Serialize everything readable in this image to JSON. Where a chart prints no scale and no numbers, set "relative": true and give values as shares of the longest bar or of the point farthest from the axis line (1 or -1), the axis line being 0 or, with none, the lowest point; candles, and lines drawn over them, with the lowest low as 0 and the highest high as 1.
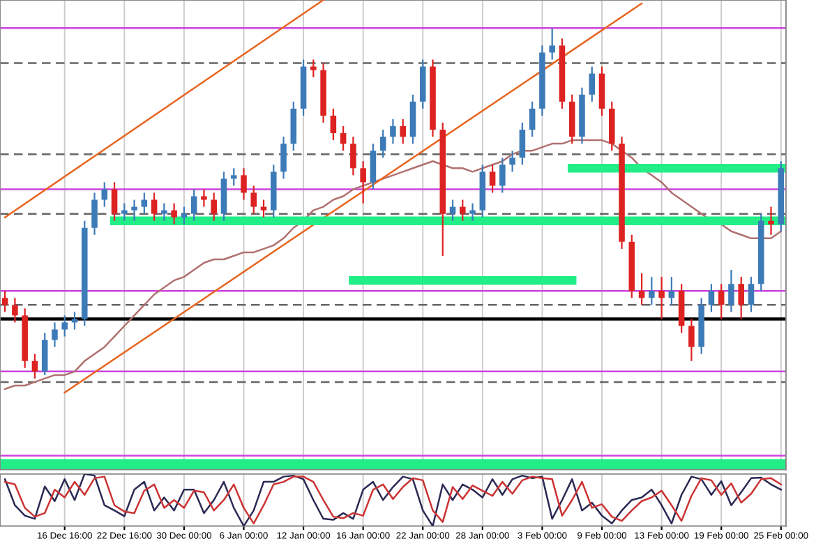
{
  "chart_data": [
    {
      "type": "candlestick",
      "relative": true,
      "tick_labels": false,
      "grid": "x",
      "categories": [
        null,
        null,
        null,
        null,
        null,
        null,
        null,
        null,
        null,
        null,
        null,
        null,
        null,
        null,
        null,
        null,
        null,
        null,
        null,
        null,
        null,
        null,
        null,
        null,
        null,
        null,
        null,
        null,
        null,
        null,
        null,
        null,
        null,
        null,
        null,
        null,
        null,
        null,
        null,
        null,
        null,
        null,
        null,
        null,
        null,
        null,
        null,
        null,
        null,
        null,
        null,
        null,
        null,
        null,
        null,
        null,
        null,
        null,
        null,
        null,
        null,
        null,
        null,
        null,
        null,
        null,
        null,
        null,
        null,
        null,
        null,
        null,
        null,
        null,
        null,
        null,
        null,
        null,
        null
      ],
      "ohlc": [
        [
          0.23,
          0.25,
          0.19,
          0.21
        ],
        [
          0.21,
          0.23,
          0.16,
          0.18
        ],
        [
          0.18,
          0.2,
          0.03,
          0.05
        ],
        [
          0.05,
          0.07,
          0,
          0.02
        ],
        [
          0.02,
          0.13,
          0.01,
          0.11
        ],
        [
          0.11,
          0.16,
          0.09,
          0.14
        ],
        [
          0.14,
          0.18,
          0.12,
          0.16
        ],
        [
          0.16,
          0.19,
          0.14,
          0.17
        ],
        [
          0.17,
          0.45,
          0.15,
          0.43
        ],
        [
          0.43,
          0.53,
          0.41,
          0.51
        ],
        [
          0.51,
          0.56,
          0.49,
          0.54
        ],
        [
          0.54,
          0.56,
          0.45,
          0.47
        ],
        [
          0.47,
          0.5,
          0.45,
          0.48
        ],
        [
          0.48,
          0.51,
          0.45,
          0.49
        ],
        [
          0.49,
          0.53,
          0.47,
          0.51
        ],
        [
          0.51,
          0.53,
          0.45,
          0.47
        ],
        [
          0.47,
          0.5,
          0.45,
          0.48
        ],
        [
          0.48,
          0.5,
          0.44,
          0.46
        ],
        [
          0.46,
          0.49,
          0.44,
          0.47
        ],
        [
          0.47,
          0.54,
          0.45,
          0.52
        ],
        [
          0.52,
          0.54,
          0.49,
          0.51
        ],
        [
          0.51,
          0.53,
          0.45,
          0.47
        ],
        [
          0.47,
          0.59,
          0.45,
          0.57
        ],
        [
          0.57,
          0.6,
          0.55,
          0.58
        ],
        [
          0.58,
          0.6,
          0.51,
          0.53
        ],
        [
          0.53,
          0.55,
          0.47,
          0.49
        ],
        [
          0.49,
          0.51,
          0.46,
          0.48
        ],
        [
          0.48,
          0.61,
          0.46,
          0.59
        ],
        [
          0.59,
          0.69,
          0.57,
          0.67
        ],
        [
          0.67,
          0.79,
          0.65,
          0.77
        ],
        [
          0.77,
          0.91,
          0.75,
          0.89
        ],
        [
          0.89,
          0.91,
          0.86,
          0.88
        ],
        [
          0.88,
          0.9,
          0.73,
          0.75
        ],
        [
          0.75,
          0.77,
          0.68,
          0.7
        ],
        [
          0.7,
          0.72,
          0.65,
          0.67
        ],
        [
          0.67,
          0.69,
          0.58,
          0.6
        ],
        [
          0.6,
          0.62,
          0.5,
          0.56
        ],
        [
          0.56,
          0.67,
          0.54,
          0.65
        ],
        [
          0.65,
          0.71,
          0.63,
          0.69
        ],
        [
          0.69,
          0.74,
          0.67,
          0.72
        ],
        [
          0.72,
          0.74,
          0.67,
          0.69
        ],
        [
          0.69,
          0.81,
          0.67,
          0.79
        ],
        [
          0.79,
          0.91,
          0.77,
          0.89
        ],
        [
          0.89,
          0.91,
          0.69,
          0.71
        ],
        [
          0.71,
          0.73,
          0.35,
          0.47
        ],
        [
          0.47,
          0.51,
          0.45,
          0.49
        ],
        [
          0.49,
          0.51,
          0.45,
          0.47
        ],
        [
          0.47,
          0.5,
          0.45,
          0.48
        ],
        [
          0.48,
          0.61,
          0.46,
          0.59
        ],
        [
          0.59,
          0.61,
          0.53,
          0.55
        ],
        [
          0.55,
          0.63,
          0.53,
          0.61
        ],
        [
          0.61,
          0.65,
          0.59,
          0.63
        ],
        [
          0.63,
          0.73,
          0.61,
          0.71
        ],
        [
          0.71,
          0.79,
          0.69,
          0.77
        ],
        [
          0.77,
          0.95,
          0.75,
          0.93
        ],
        [
          0.93,
          1,
          0.91,
          0.95
        ],
        [
          0.95,
          0.97,
          0.77,
          0.79
        ],
        [
          0.79,
          0.81,
          0.67,
          0.69
        ],
        [
          0.69,
          0.83,
          0.67,
          0.81
        ],
        [
          0.81,
          0.89,
          0.79,
          0.87
        ],
        [
          0.87,
          0.89,
          0.75,
          0.77
        ],
        [
          0.77,
          0.79,
          0.65,
          0.67
        ],
        [
          0.67,
          0.69,
          0.37,
          0.39
        ],
        [
          0.39,
          0.41,
          0.23,
          0.25
        ],
        [
          0.25,
          0.3,
          0.21,
          0.23
        ],
        [
          0.23,
          0.29,
          0.21,
          0.25
        ],
        [
          0.25,
          0.29,
          0.17,
          0.23
        ],
        [
          0.23,
          0.29,
          0.21,
          0.25
        ],
        [
          0.25,
          0.27,
          0.13,
          0.15
        ],
        [
          0.15,
          0.17,
          0.05,
          0.09
        ],
        [
          0.09,
          0.23,
          0.07,
          0.21
        ],
        [
          0.21,
          0.27,
          0.19,
          0.25
        ],
        [
          0.25,
          0.27,
          0.17,
          0.21
        ],
        [
          0.21,
          0.31,
          0.19,
          0.27
        ],
        [
          0.27,
          0.29,
          0.17,
          0.21
        ],
        [
          0.21,
          0.29,
          0.19,
          0.27
        ],
        [
          0.27,
          0.47,
          0.25,
          0.45
        ],
        [
          0.45,
          0.49,
          0.41,
          0.44
        ],
        [
          0.44,
          0.62,
          0.42,
          0.6
        ]
      ],
      "colors": [
        "#dd2222",
        "#dd2222",
        "#dd2222",
        "#dd2222",
        "#3d7bb8",
        "#3d7bb8",
        "#3d7bb8",
        "#3d7bb8",
        "#3d7bb8",
        "#3d7bb8",
        "#3d7bb8",
        "#dd2222",
        "#3d7bb8",
        "#3d7bb8",
        "#3d7bb8",
        "#dd2222",
        "#3d7bb8",
        "#dd2222",
        "#3d7bb8",
        "#3d7bb8",
        "#dd2222",
        "#dd2222",
        "#3d7bb8",
        "#3d7bb8",
        "#dd2222",
        "#dd2222",
        "#dd2222",
        "#3d7bb8",
        "#3d7bb8",
        "#3d7bb8",
        "#3d7bb8",
        "#dd2222",
        "#dd2222",
        "#dd2222",
        "#dd2222",
        "#dd2222",
        "#dd2222",
        "#3d7bb8",
        "#3d7bb8",
        "#3d7bb8",
        "#dd2222",
        "#3d7bb8",
        "#3d7bb8",
        "#dd2222",
        "#dd2222",
        "#3d7bb8",
        "#dd2222",
        "#3d7bb8",
        "#3d7bb8",
        "#dd2222",
        "#3d7bb8",
        "#3d7bb8",
        "#3d7bb8",
        "#3d7bb8",
        "#3d7bb8",
        "#3d7bb8",
        "#dd2222",
        "#dd2222",
        "#3d7bb8",
        "#3d7bb8",
        "#dd2222",
        "#dd2222",
        "#dd2222",
        "#dd2222",
        "#dd2222",
        "#3d7bb8",
        "#dd2222",
        "#3d7bb8",
        "#dd2222",
        "#dd2222",
        "#3d7bb8",
        "#3d7bb8",
        "#dd2222",
        "#3d7bb8",
        "#dd2222",
        "#3d7bb8",
        "#3d7bb8",
        "#dd2222",
        "#3d7bb8"
      ],
      "series": [
        {
          "type": "line",
          "color": "#b07070",
          "values": [
            -0.03,
            -0.02,
            -0.02,
            -0.01,
            0,
            0.01,
            0.01,
            0.02,
            0.05,
            0.07,
            0.09,
            0.12,
            0.15,
            0.18,
            0.21,
            0.24,
            0.26,
            0.28,
            0.29,
            0.31,
            0.33,
            0.34,
            0.34,
            0.35,
            0.36,
            0.36,
            0.37,
            0.38,
            0.4,
            0.43,
            0.45,
            0.48,
            0.49,
            0.51,
            0.52,
            0.54,
            0.55,
            0.56,
            0.57,
            0.58,
            0.59,
            0.6,
            0.61,
            0.62,
            0.61,
            0.6,
            0.6,
            0.59,
            0.6,
            0.61,
            0.62,
            0.64,
            0.65,
            0.65,
            0.66,
            0.67,
            0.67,
            0.68,
            0.68,
            0.68,
            0.68,
            0.67,
            0.65,
            0.63,
            0.6,
            0.58,
            0.56,
            0.53,
            0.51,
            0.49,
            0.47,
            0.45,
            0.44,
            0.42,
            0.41,
            0.4,
            0.4,
            0.4,
            0.42
          ]
        },
        {
          "type": "line",
          "color": "#e8641e",
          "values": [
            0.46,
            null,
            null,
            null,
            null,
            null,
            null,
            null,
            null,
            null,
            null,
            null,
            null,
            null,
            null,
            null,
            null,
            null,
            null,
            null,
            null,
            null,
            null,
            null,
            null,
            null,
            null,
            null,
            null,
            null,
            null,
            null,
            1.08,
            null,
            null,
            null,
            null,
            null,
            null,
            null,
            null,
            null,
            null,
            null,
            null,
            null,
            null,
            null,
            null,
            null,
            null,
            null,
            null,
            null,
            null,
            null,
            null,
            null,
            null,
            null,
            null,
            null,
            null,
            null,
            null,
            null,
            null,
            null,
            null,
            null,
            null,
            null,
            null,
            null,
            null,
            null,
            null,
            null,
            null
          ]
        },
        {
          "type": "line",
          "color": "#e8641e",
          "values": [
            null,
            null,
            null,
            null,
            null,
            null,
            -0.04,
            null,
            null,
            null,
            null,
            null,
            null,
            null,
            null,
            null,
            null,
            null,
            null,
            null,
            null,
            null,
            null,
            null,
            null,
            null,
            null,
            null,
            null,
            null,
            null,
            null,
            null,
            null,
            null,
            null,
            null,
            null,
            null,
            null,
            null,
            null,
            null,
            null,
            null,
            null,
            null,
            null,
            null,
            null,
            null,
            null,
            null,
            null,
            null,
            null,
            null,
            null,
            null,
            null,
            null,
            null,
            null,
            null,
            1.07,
            null,
            null,
            null,
            null,
            null,
            null,
            null,
            null,
            null,
            null,
            null,
            null,
            null,
            null
          ]
        },
        {
          "type": "line",
          "color": "#22ee88",
          "values": [
            null,
            null,
            null,
            null,
            null,
            null,
            null,
            null,
            null,
            null,
            null,
            0.45,
            null,
            null,
            null,
            null,
            null,
            null,
            null,
            null,
            null,
            null,
            null,
            null,
            null,
            null,
            null,
            null,
            null,
            null,
            null,
            null,
            null,
            null,
            null,
            null,
            null,
            null,
            null,
            null,
            null,
            null,
            null,
            null,
            null,
            null,
            null,
            null,
            null,
            null,
            null,
            null,
            null,
            null,
            null,
            null,
            null,
            null,
            null,
            null,
            null,
            null,
            null,
            null,
            null,
            null,
            null,
            null,
            null,
            null,
            null,
            null,
            null,
            null,
            null,
            null,
            null,
            null,
            0.45
          ]
        },
        {
          "type": "line",
          "color": "#22ee88",
          "values": [
            null,
            null,
            null,
            null,
            null,
            null,
            null,
            null,
            null,
            null,
            null,
            null,
            null,
            null,
            null,
            null,
            null,
            null,
            null,
            null,
            null,
            null,
            null,
            null,
            null,
            null,
            null,
            null,
            null,
            null,
            null,
            null,
            null,
            null,
            null,
            0.28,
            null,
            null,
            null,
            null,
            null,
            null,
            null,
            null,
            null,
            null,
            null,
            null,
            null,
            null,
            null,
            null,
            null,
            null,
            null,
            null,
            null,
            0.28,
            null,
            null,
            null,
            null,
            null,
            null,
            null,
            null,
            null,
            null,
            null,
            null,
            null,
            null,
            null,
            null,
            null,
            null,
            null,
            null,
            null
          ]
        },
        {
          "type": "line",
          "color": "#22ee88",
          "values": [
            null,
            null,
            null,
            null,
            null,
            null,
            null,
            null,
            null,
            null,
            null,
            null,
            null,
            null,
            null,
            null,
            null,
            null,
            null,
            null,
            null,
            null,
            null,
            null,
            null,
            null,
            null,
            null,
            null,
            null,
            null,
            null,
            null,
            null,
            null,
            null,
            null,
            null,
            null,
            null,
            null,
            null,
            null,
            null,
            null,
            null,
            null,
            null,
            null,
            null,
            null,
            null,
            null,
            null,
            null,
            null,
            null,
            0.6,
            null,
            null,
            null,
            null,
            null,
            null,
            null,
            null,
            null,
            null,
            null,
            null,
            null,
            null,
            null,
            null,
            null,
            null,
            null,
            null,
            0.6
          ]
        }
      ],
      "ref_lines": [
        {
          "axis": "y",
          "value": 1.0,
          "color": "#cc44dd",
          "line_style": "solid"
        },
        {
          "axis": "y",
          "value": 0.54,
          "color": "#cc44dd",
          "line_style": "solid"
        },
        {
          "axis": "y",
          "value": 0.25,
          "color": "#cc44dd",
          "line_style": "solid"
        },
        {
          "axis": "y",
          "value": 0.02,
          "color": "#cc44dd",
          "line_style": "solid"
        },
        {
          "axis": "y",
          "value": -0.22,
          "color": "#cc44dd",
          "line_style": "solid"
        },
        {
          "axis": "y",
          "value": 0.9,
          "color": "#666666",
          "line_style": "dashed"
        },
        {
          "axis": "y",
          "value": 0.64,
          "color": "#666666",
          "line_style": "dashed"
        },
        {
          "axis": "y",
          "value": 0.47,
          "color": "#666666",
          "line_style": "dashed"
        },
        {
          "axis": "y",
          "value": 0.21,
          "color": "#666666",
          "line_style": "dashed"
        },
        {
          "axis": "y",
          "value": -0.01,
          "color": "#666666",
          "line_style": "dashed"
        },
        {
          "axis": "y",
          "value": 0.17,
          "color": "#000000",
          "line_style": "solid"
        }
      ],
      "bands": [
        {
          "axis": "y",
          "from": -0.26,
          "to": -0.23,
          "color": "#22ee88"
        }
      ]
    },
    {
      "type": "line",
      "relative": true,
      "tick_labels": "x",
      "grid": "x",
      "categories": [
        null,
        null,
        null,
        null,
        null,
        null,
        "16 Dec 16:00",
        null,
        null,
        null,
        null,
        null,
        "22 Dec 16:00",
        null,
        null,
        null,
        null,
        null,
        "30 Dec 00:00",
        null,
        null,
        null,
        null,
        null,
        "6 Jan 00:00",
        null,
        null,
        null,
        null,
        null,
        "12 Jan 00:00",
        null,
        null,
        null,
        null,
        null,
        "16 Jan 00:00",
        null,
        null,
        null,
        null,
        null,
        "22 Jan 00:00",
        null,
        null,
        null,
        null,
        null,
        "28 Jan 00:00",
        null,
        null,
        null,
        null,
        null,
        "3 Feb 00:00",
        null,
        null,
        null,
        null,
        null,
        "9 Feb 00:00",
        null,
        null,
        null,
        null,
        null,
        "13 Feb 00:00",
        null,
        null,
        null,
        null,
        null,
        "19 Feb 00:00",
        null,
        null,
        null,
        null,
        null,
        "25 Feb 00:00"
      ],
      "series": [
        {
          "color": "#2a2a55",
          "values": [
            0.9,
            0.4,
            0.2,
            0.14,
            0.76,
            0.48,
            0.9,
            0.5,
            1.0,
            0.97,
            0.4,
            0.3,
            0.19,
            0.7,
            0.85,
            0.3,
            0.55,
            0.3,
            0.7,
            0.7,
            0.25,
            0.5,
            0.85,
            0.35,
            0,
            0.3,
            0.85,
            0.85,
            0.95,
            0.97,
            0.9,
            0.5,
            0.14,
            0.12,
            0.25,
            0.14,
            0.7,
            0.85,
            0.5,
            0.75,
            0.95,
            0.9,
            0.3,
            0,
            0.8,
            0.5,
            0.8,
            0.7,
            0.55,
            0.9,
            0.6,
            0.9,
            0.97,
            0.92,
            0.95,
            0.14,
            0.5,
            0.9,
            0.3,
            0.45,
            0.2,
            0.05,
            0.3,
            0.5,
            0.55,
            0.7,
            0.4,
            0.05,
            0.6,
            0.95,
            0.9,
            0.6,
            0.86,
            0.4,
            0.65,
            0.92,
            0.93,
            0.8,
            0.7
          ]
        },
        {
          "color": "#cc3333",
          "values": [
            0.85,
            0.8,
            0.35,
            0.18,
            0.25,
            0.7,
            0.55,
            0.85,
            0.6,
            0.92,
            0.95,
            0.4,
            0.28,
            0.25,
            0.68,
            0.8,
            0.35,
            0.5,
            0.35,
            0.68,
            0.65,
            0.3,
            0.5,
            0.8,
            0.35,
            0.05,
            0.4,
            0.8,
            0.85,
            0.95,
            0.95,
            0.85,
            0.5,
            0.18,
            0.15,
            0.25,
            0.2,
            0.7,
            0.8,
            0.52,
            0.75,
            0.92,
            0.88,
            0.3,
            0.08,
            0.75,
            0.52,
            0.78,
            0.68,
            0.58,
            0.85,
            0.62,
            0.88,
            0.95,
            0.92,
            0.9,
            0.2,
            0.5,
            0.85,
            0.35,
            0.42,
            0.18,
            0.1,
            0.3,
            0.48,
            0.55,
            0.68,
            0.4,
            0.1,
            0.58,
            0.92,
            0.88,
            0.6,
            0.82,
            0.45,
            0.62,
            0.9,
            0.92,
            0.8
          ]
        }
      ]
    }
  ]
}
